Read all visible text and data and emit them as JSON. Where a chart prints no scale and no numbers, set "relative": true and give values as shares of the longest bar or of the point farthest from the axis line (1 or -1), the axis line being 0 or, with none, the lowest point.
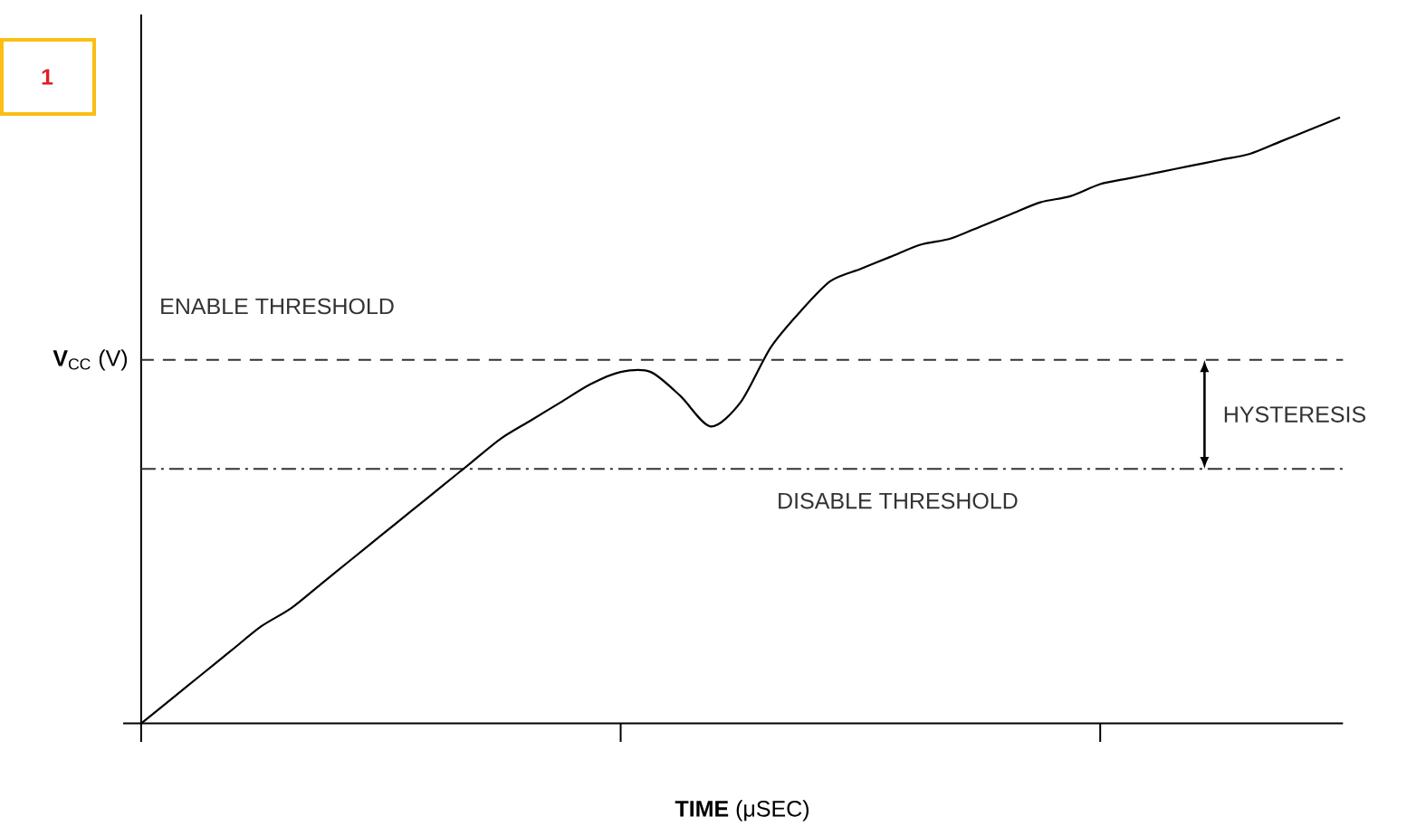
{
  "chart_data": {
    "type": "line",
    "relative": true,
    "xlabel": "**TIME** (μSEC)",
    "ylabel": "**V**$_{CC}$ (V)",
    "categories": [
      null,
      null,
      null,
      null,
      null,
      null,
      null,
      null,
      null,
      null,
      null,
      null,
      null,
      null,
      null,
      null,
      null,
      null,
      null,
      null,
      null,
      null,
      null,
      null,
      null,
      null,
      null,
      null,
      null,
      null,
      null,
      null,
      null,
      null,
      null,
      null,
      null,
      null,
      null,
      null,
      null
    ],
    "series": [
      {
        "color": "#000000",
        "values": [
          0,
          0.04,
          0.08,
          0.12,
          0.16,
          0.19,
          0.23,
          0.27,
          0.31,
          0.35,
          0.39,
          0.43,
          0.47,
          0.5,
          0.53,
          0.56,
          0.58,
          0.58,
          0.54,
          0.49,
          0.53,
          0.62,
          0.68,
          0.73,
          0.75,
          0.77,
          0.79,
          0.8,
          0.82,
          0.84,
          0.86,
          0.87,
          0.89,
          0.9,
          0.91,
          0.92,
          0.93,
          0.94,
          0.96,
          0.98,
          1
        ]
      }
    ],
    "ref_lines": [
      {
        "axis": "y",
        "value": 0.6,
        "label": "ENABLE THRESHOLD",
        "line_style": "dashed"
      },
      {
        "axis": "y",
        "value": 0.42,
        "label": "DISABLE THRESHOLD",
        "line_style": "dashdot"
      }
    ],
    "annotations": [
      "1",
      "HYSTERESIS"
    ],
    "line_style": "solid",
    "marker": "none"
  }
}
